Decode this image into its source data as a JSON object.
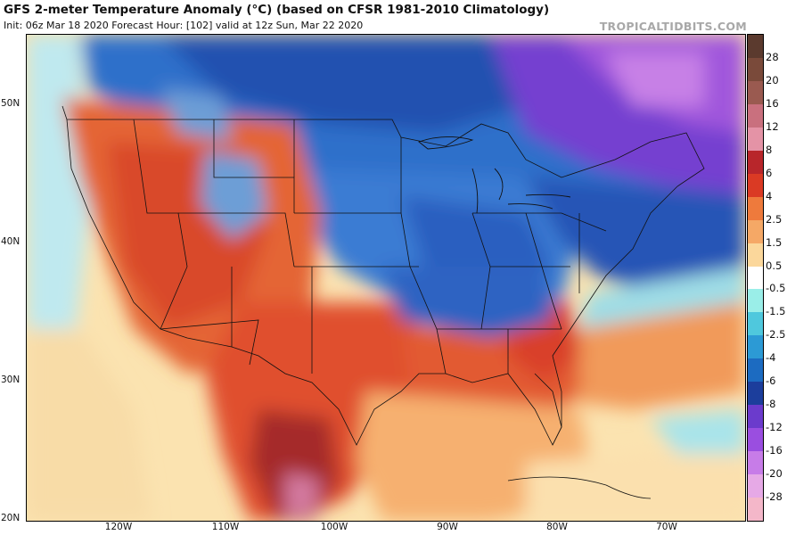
{
  "header": {
    "title": "GFS 2-meter Temperature Anomaly (°C) (based on CFSR 1981-2010 Climatology)",
    "subtitle": "Init: 06z Mar 18 2020   Forecast Hour: [102]   valid at 12z Sun, Mar 22 2020",
    "credit": "TROPICALTIDBITS.COM"
  },
  "axes": {
    "lat_labels": [
      "50N",
      "40N",
      "30N",
      "20N"
    ],
    "lon_labels": [
      "120W",
      "110W",
      "100W",
      "90W",
      "80W",
      "70W"
    ]
  },
  "map": {
    "region": "Contiguous United States",
    "features": {
      "warm_southwest": "Strong positive anomalies (4 to 8) over the interior West, Great Basin and northern Mexico",
      "cold_core": "Negative anomalies (-2.5 to -6) across the northern Plains, Great Lakes, Midwest and Ohio Valley",
      "very_cold_northeast": "Anomalies near -8 to -16 over eastern Canada and northern New England",
      "warm_southeast": "Positive anomalies (2.5 to 6) along the Gulf Coast, Florida and the Carolinas",
      "pacific": "Near-neutral to slightly negative anomalies over the Pacific"
    }
  },
  "colorbar": {
    "labels": [
      "28",
      "20",
      "16",
      "12",
      "8",
      "6",
      "4",
      "2.5",
      "1.5",
      "0.5",
      "-0.5",
      "-1.5",
      "-2.5",
      "-4",
      "-6",
      "-8",
      "-12",
      "-16",
      "-20",
      "-28"
    ],
    "colors": [
      "#5b3a2e",
      "#7a4a3a",
      "#9a5a50",
      "#c9707e",
      "#e493a6",
      "#b8262b",
      "#da3a24",
      "#ee7a3c",
      "#f5a866",
      "#fbd79b",
      "#ffffff",
      "#9aeee8",
      "#4fc8dd",
      "#2c9ad5",
      "#1c6bc1",
      "#1c3e9c",
      "#6b3bcc",
      "#9a4ee0",
      "#c77ce8",
      "#e6a9e6",
      "#f4b7c9"
    ]
  },
  "colors": {
    "ocean_neutral": "#fbe7b8",
    "pacific_cool": "#cdeef2",
    "warm_orange": "#ee7a3c",
    "warm_red": "#da3a24",
    "cold_blue": "#2c7bd0",
    "deep_blue": "#1c4aa6",
    "purple": "#7a3fd1"
  }
}
